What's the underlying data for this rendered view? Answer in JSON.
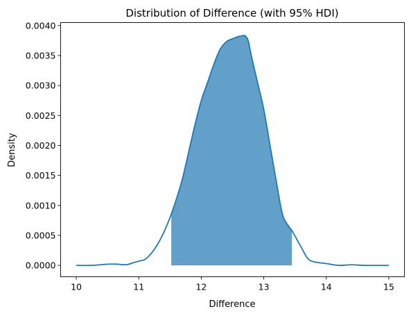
{
  "chart_data": {
    "type": "area",
    "title": "Distribution of Difference (with 95% HDI)",
    "xlabel": "Difference",
    "ylabel": "Density",
    "xlim": [
      9.75,
      15.25
    ],
    "ylim": [
      -0.00019,
      0.00405
    ],
    "x_ticks": [
      10,
      11,
      12,
      13,
      14,
      15
    ],
    "x_tick_labels": [
      "10",
      "11",
      "12",
      "13",
      "14",
      "15"
    ],
    "y_ticks": [
      0,
      0.0005,
      0.001,
      0.0015,
      0.002,
      0.0025,
      0.003,
      0.0035,
      0.004
    ],
    "y_tick_labels": [
      "0.0000",
      "0.0005",
      "0.0010",
      "0.0015",
      "0.0020",
      "0.0025",
      "0.0030",
      "0.0035",
      "0.0040"
    ],
    "grid": false,
    "legend": "none",
    "series": [
      {
        "kind": "density-line",
        "color": "#1f77b4",
        "x": [
          10.0,
          10.25,
          10.5,
          10.65,
          10.8,
          10.9,
          11.0,
          11.1,
          11.2,
          11.3,
          11.4,
          11.5,
          11.6,
          11.7,
          11.8,
          11.9,
          12.0,
          12.1,
          12.2,
          12.3,
          12.4,
          12.5,
          12.55,
          12.6,
          12.65,
          12.7,
          12.75,
          12.8,
          12.9,
          13.0,
          13.1,
          13.2,
          13.3,
          13.4,
          13.45,
          13.6,
          13.7,
          13.8,
          14.0,
          14.2,
          14.4,
          14.6,
          14.8,
          15.0
        ],
        "y": [
          0.0,
          0.0,
          2e-05,
          2e-05,
          1e-05,
          4e-05,
          7e-05,
          0.0001,
          0.0002,
          0.00035,
          0.00055,
          0.0008,
          0.0011,
          0.00145,
          0.0019,
          0.00235,
          0.00275,
          0.00305,
          0.00335,
          0.0036,
          0.00373,
          0.00378,
          0.0038,
          0.00382,
          0.00383,
          0.00383,
          0.00375,
          0.0035,
          0.00305,
          0.0026,
          0.002,
          0.0014,
          0.00085,
          0.00065,
          0.00058,
          0.0003,
          0.00012,
          6e-05,
          3e-05,
          0.0,
          1e-05,
          0.0,
          0.0,
          0.0
        ]
      },
      {
        "kind": "hdi-fill",
        "name": "95% HDI",
        "color": "#1f77b4",
        "opacity": 0.7,
        "range": [
          11.52,
          13.45
        ]
      }
    ]
  }
}
